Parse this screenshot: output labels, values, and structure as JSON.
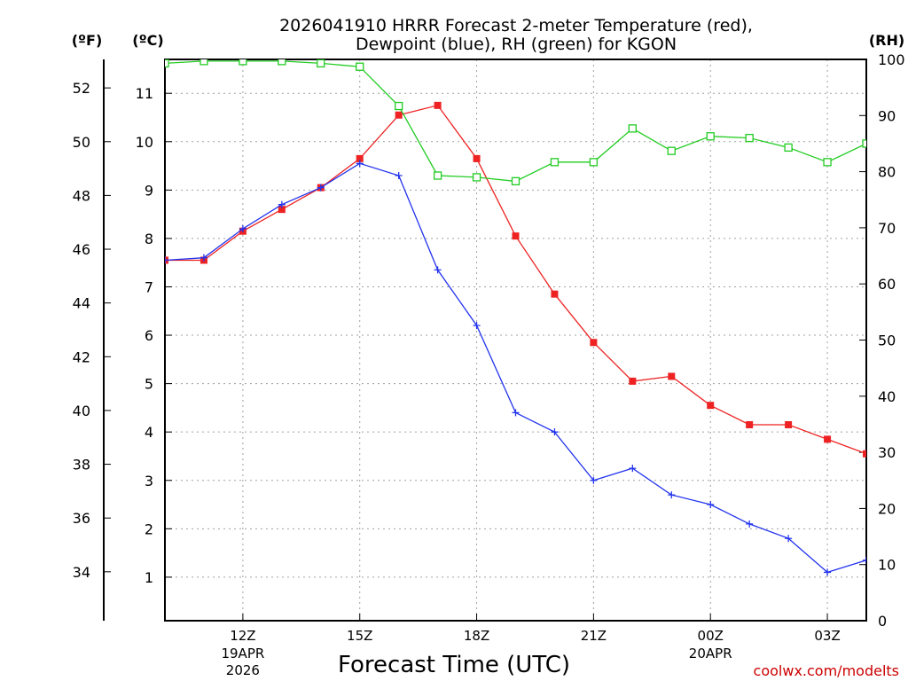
{
  "chart_data": {
    "type": "line",
    "title_line1": "2026041910 HRRR Forecast 2-meter Temperature (red),",
    "title_line2": "Dewpoint (blue), RH (green) for KGON",
    "units": {
      "f": "(ºF)",
      "c": "(ºC)",
      "rh": "(RH)"
    },
    "xlabel": "Forecast Time (UTC)",
    "credit": "coolwx.com/modelts",
    "x_hours": [
      10,
      11,
      12,
      13,
      14,
      15,
      16,
      17,
      18,
      19,
      20,
      21,
      22,
      23,
      24,
      25,
      26,
      27,
      28
    ],
    "x_range": [
      10,
      28
    ],
    "x_ticks": [
      {
        "hour": 12,
        "label": "12Z",
        "sub1": "19APR",
        "sub2": "2026"
      },
      {
        "hour": 15,
        "label": "15Z",
        "sub1": "",
        "sub2": ""
      },
      {
        "hour": 18,
        "label": "18Z",
        "sub1": "",
        "sub2": ""
      },
      {
        "hour": 21,
        "label": "21Z",
        "sub1": "",
        "sub2": ""
      },
      {
        "hour": 24,
        "label": "00Z",
        "sub1": "20APR",
        "sub2": ""
      },
      {
        "hour": 27,
        "label": "03Z",
        "sub1": "",
        "sub2": ""
      }
    ],
    "c_axis": {
      "range": [
        0.1,
        11.7
      ],
      "ticks": [
        1,
        2,
        3,
        4,
        5,
        6,
        7,
        8,
        9,
        10,
        11
      ]
    },
    "f_axis": {
      "ticks": [
        34,
        36,
        38,
        40,
        42,
        44,
        46,
        48,
        50,
        52
      ]
    },
    "rh_axis": {
      "range": [
        0,
        100
      ],
      "ticks": [
        0,
        10,
        20,
        30,
        40,
        50,
        60,
        70,
        80,
        90,
        100
      ]
    },
    "series": [
      {
        "name": "Temperature",
        "units": "C",
        "color": "#ee2222",
        "marker": "filled-square",
        "values": [
          7.55,
          7.55,
          8.15,
          8.6,
          9.05,
          9.65,
          10.55,
          10.75,
          9.65,
          8.05,
          6.85,
          5.85,
          5.05,
          5.15,
          4.55,
          4.15,
          4.15,
          3.85,
          3.55
        ]
      },
      {
        "name": "Dewpoint",
        "units": "C",
        "color": "#2233ee",
        "marker": "plus",
        "values": [
          7.55,
          7.6,
          8.2,
          8.7,
          9.05,
          9.55,
          9.3,
          7.35,
          6.2,
          4.4,
          4.0,
          3.0,
          3.25,
          2.7,
          2.5,
          2.1,
          1.8,
          1.1,
          1.35
        ]
      },
      {
        "name": "RH",
        "units": "%",
        "color": "#22cc22",
        "marker": "open-square",
        "values": [
          99.3,
          99.7,
          99.7,
          99.7,
          99.3,
          98.7,
          91.7,
          79.3,
          79.0,
          78.3,
          81.7,
          81.7,
          87.7,
          83.7,
          86.3,
          86.0,
          84.3,
          81.7,
          85.0
        ]
      }
    ]
  }
}
